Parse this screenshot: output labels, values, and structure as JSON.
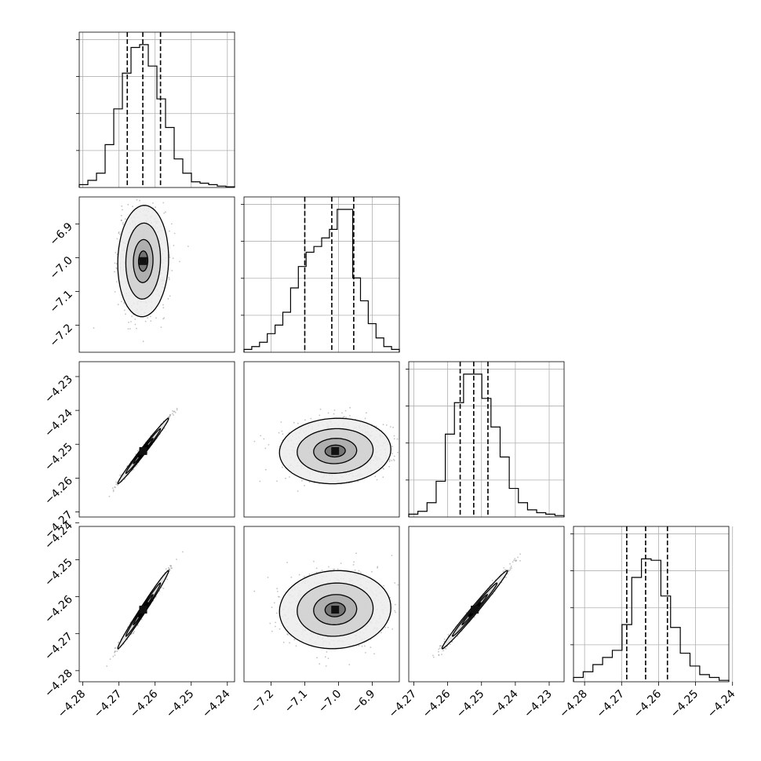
{
  "chart_data": {
    "type": "corner",
    "grid": true,
    "parameters": [
      {
        "ticks": [
          "−4.28",
          "−4.27",
          "−4.26",
          "−4.25",
          "−4.24"
        ],
        "tick_values": [
          -4.28,
          -4.27,
          -4.26,
          -4.25,
          -4.24
        ],
        "range": [
          -4.281,
          -4.238
        ],
        "histogram": [
          0.02,
          0.05,
          0.1,
          0.3,
          0.55,
          0.8,
          0.98,
          1.0,
          0.85,
          0.62,
          0.42,
          0.2,
          0.1,
          0.04,
          0.03,
          0.02,
          0.01,
          0.005
        ],
        "quantiles": [
          -4.2677,
          -4.2634,
          -4.2585
        ]
      },
      {
        "ticks": [
          "−7.2",
          "−7.1",
          "−7.0",
          "−6.9"
        ],
        "tick_values": [
          -7.2,
          -7.1,
          -7.0,
          -6.9
        ],
        "range": [
          -7.28,
          -6.82
        ],
        "histogram": [
          0.02,
          0.04,
          0.07,
          0.13,
          0.19,
          0.28,
          0.45,
          0.6,
          0.7,
          0.74,
          0.8,
          0.86,
          1.0,
          1.0,
          0.52,
          0.36,
          0.2,
          0.1,
          0.04,
          0.02
        ],
        "quantiles": [
          -7.1,
          -7.02,
          -6.955
        ]
      },
      {
        "ticks": [
          "−4.27",
          "−4.26",
          "−4.25",
          "−4.24",
          "−4.23"
        ],
        "tick_values": [
          -4.27,
          -4.26,
          -4.25,
          -4.24,
          -4.23
        ],
        "range": [
          -4.2715,
          -4.2256
        ],
        "histogram": [
          0.02,
          0.04,
          0.1,
          0.25,
          0.58,
          0.8,
          1.0,
          1.0,
          0.83,
          0.63,
          0.42,
          0.2,
          0.1,
          0.05,
          0.03,
          0.02,
          0.01
        ],
        "quantiles": [
          -4.2563,
          -4.2523,
          -4.2481
        ]
      },
      {
        "ticks": [
          "−4.28",
          "−4.27",
          "−4.26",
          "−4.25",
          "−4.24"
        ],
        "tick_values": [
          -4.28,
          -4.27,
          -4.26,
          -4.25,
          -4.24
        ],
        "range": [
          -4.283,
          -4.241
        ],
        "histogram": [
          0.03,
          0.07,
          0.12,
          0.17,
          0.22,
          0.4,
          0.73,
          0.86,
          0.85,
          0.6,
          0.38,
          0.2,
          0.11,
          0.05,
          0.03,
          0.01
        ],
        "quantiles": [
          -4.2686,
          -4.2635,
          -4.2576
        ]
      }
    ],
    "correlations": {
      "1-0": {
        "center": [
          -4.2633,
          -7.01
        ],
        "sd": [
          0.0032,
          0.075
        ],
        "rho": 0.05
      },
      "2-0": {
        "center": [
          -4.2633,
          -4.252
        ],
        "sd": [
          0.0032,
          0.0044
        ],
        "rho": 0.99
      },
      "2-1": {
        "center": [
          -7.01,
          -4.252
        ],
        "sd": [
          0.075,
          0.0044
        ],
        "rho": 0.05
      },
      "3-0": {
        "center": [
          -4.2633,
          -4.2635
        ],
        "sd": [
          0.0032,
          0.0048
        ],
        "rho": 0.99
      },
      "3-1": {
        "center": [
          -7.01,
          -4.2635
        ],
        "sd": [
          0.075,
          0.0048
        ],
        "rho": 0.05
      },
      "3-2": {
        "center": [
          -4.252,
          -4.2635
        ],
        "sd": [
          0.0044,
          0.0048
        ],
        "rho": 0.99
      }
    }
  }
}
